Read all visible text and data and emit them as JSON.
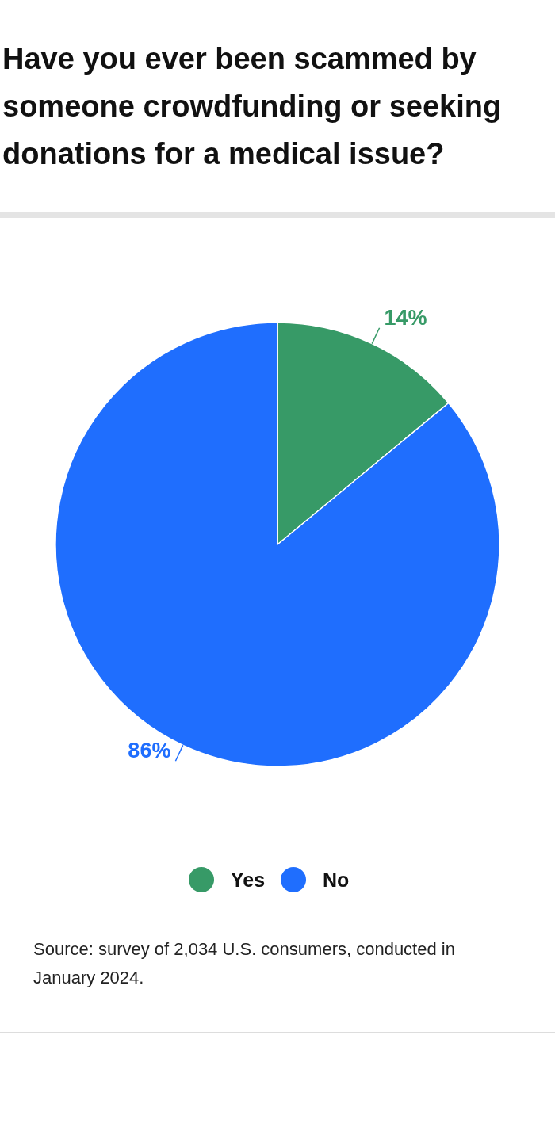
{
  "chart_data": {
    "type": "pie",
    "title": "Have you ever been scammed by someone crowdfunding or seeking donations for a medical issue?",
    "categories": [
      "Yes",
      "No"
    ],
    "values": [
      14,
      86
    ],
    "colors": [
      "#379a67",
      "#1f6efe"
    ],
    "value_labels": [
      "14%",
      "86%"
    ],
    "legend": "bottom",
    "annotations": [
      "Source: survey of 2,034 U.S. consumers, conducted in January 2024."
    ]
  }
}
